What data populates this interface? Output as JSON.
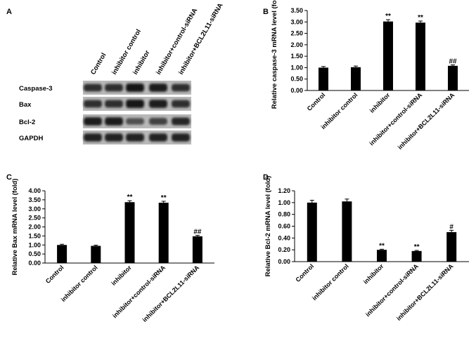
{
  "panels": {
    "A": {
      "letter": "A",
      "lanes": [
        "Control",
        "inhibitor control",
        "inhibitor",
        "inhibitor+control-siRNA",
        "inhibitor+BCL2L11-siRNA"
      ],
      "bands": [
        {
          "label": "Caspase-3",
          "intensity": [
            0.8,
            0.8,
            1.0,
            0.95,
            0.8
          ]
        },
        {
          "label": "Bax",
          "intensity": [
            0.8,
            0.8,
            1.0,
            0.95,
            0.8
          ]
        },
        {
          "label": "Bcl-2",
          "intensity": [
            0.95,
            0.95,
            0.55,
            0.65,
            0.85
          ]
        },
        {
          "label": "GAPDH",
          "intensity": [
            0.9,
            0.9,
            0.9,
            0.9,
            0.9
          ]
        }
      ]
    }
  },
  "chart_data": [
    {
      "id": "B",
      "letter": "B",
      "type": "bar",
      "categories": [
        "Control",
        "inhibitor control",
        "inhibitor",
        "inhibitor+control-siRNA",
        "inhibitor+BCL2L11-siRNA"
      ],
      "values": [
        1.0,
        1.02,
        3.02,
        2.97,
        1.08
      ],
      "errors": [
        0.05,
        0.05,
        0.08,
        0.07,
        0.04
      ],
      "annotations": [
        "",
        "",
        "**",
        "**",
        "##"
      ],
      "ylabel": "Relative caspase-3 mRNA level (fold)",
      "ylim": [
        0,
        3.5
      ],
      "yticks": [
        "0.00",
        "0.50",
        "1.00",
        "1.50",
        "2.00",
        "2.50",
        "3.00",
        "3.50"
      ],
      "ytick_values": [
        0,
        0.5,
        1.0,
        1.5,
        2.0,
        2.5,
        3.0,
        3.5
      ]
    },
    {
      "id": "C",
      "letter": "C",
      "type": "bar",
      "categories": [
        "Control",
        "inhibitor control",
        "inhibitor",
        "inhibitor+control-siRNA",
        "inhibitor+BCL2L11-siRNA"
      ],
      "values": [
        1.0,
        0.95,
        3.37,
        3.34,
        1.48
      ],
      "errors": [
        0.04,
        0.04,
        0.08,
        0.08,
        0.05
      ],
      "annotations": [
        "",
        "",
        "**",
        "**",
        "##"
      ],
      "ylabel": "Relative Bax mRNA level (fold)",
      "ylim": [
        0,
        4.0
      ],
      "yticks": [
        "0.00",
        "0.50",
        "1.00",
        "1.50",
        "2.00",
        "2.50",
        "3.00",
        "3.50",
        "4.00"
      ],
      "ytick_values": [
        0,
        0.5,
        1.0,
        1.5,
        2.0,
        2.5,
        3.0,
        3.5,
        4.0
      ]
    },
    {
      "id": "D",
      "letter": "D",
      "type": "bar",
      "categories": [
        "Control",
        "inhibitor control",
        "inhibitor",
        "inhibitor+control-siRNA",
        "inhibitor+BCL2L11-siRNA"
      ],
      "values": [
        1.0,
        1.02,
        0.2,
        0.18,
        0.5
      ],
      "errors": [
        0.04,
        0.04,
        0.01,
        0.01,
        0.03
      ],
      "annotations": [
        "",
        "",
        "**",
        "**",
        "#"
      ],
      "ylabel": "Relative Bcl-2 mRNA level (fold)",
      "ylim": [
        0,
        1.2
      ],
      "yticks": [
        "0.00",
        "0.20",
        "0.40",
        "0.60",
        "0.80",
        "1.00",
        "1.20"
      ],
      "ytick_values": [
        0,
        0.2,
        0.4,
        0.6,
        0.8,
        1.0,
        1.2
      ]
    }
  ]
}
